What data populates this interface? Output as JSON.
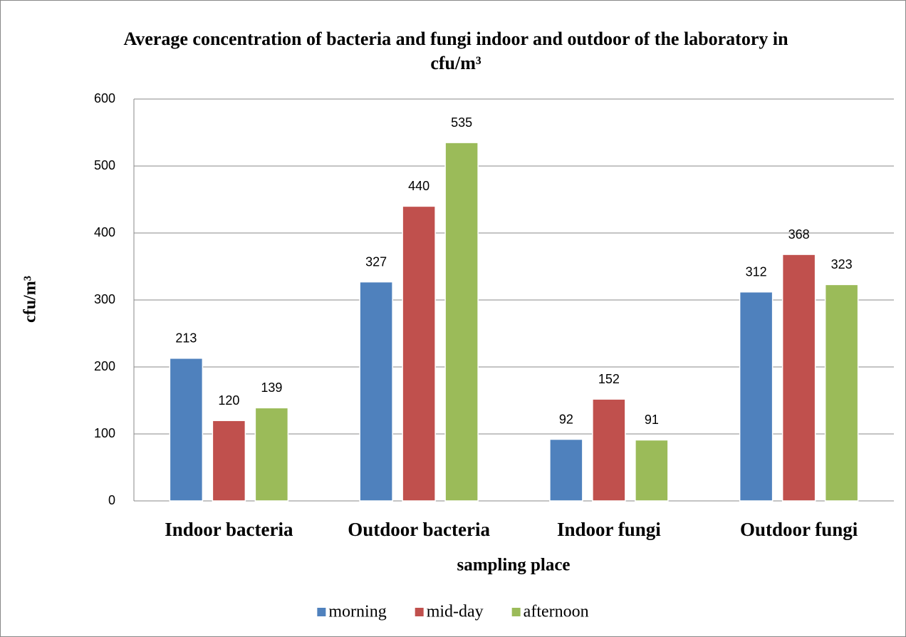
{
  "chart_data": {
    "type": "bar",
    "title": "Average concentration of bacteria and fungi indoor and outdoor of the laboratory in cfu/m³",
    "y_label": "cfu/m³",
    "x_label": "sampling place",
    "categories": [
      "Indoor bacteria",
      "Outdoor bacteria",
      "Indoor fungi",
      "Outdoor fungi"
    ],
    "series": [
      {
        "name": "morning",
        "color": "#4f81bd",
        "values": [
          213,
          327,
          92,
          312
        ]
      },
      {
        "name": "mid-day",
        "color": "#c0504d",
        "values": [
          120,
          440,
          152,
          368
        ]
      },
      {
        "name": "afternoon",
        "color": "#9bbb59",
        "values": [
          139,
          535,
          91,
          323
        ]
      }
    ],
    "ylim": [
      0,
      600
    ],
    "yticks": [
      0,
      100,
      200,
      300,
      400,
      500,
      600
    ],
    "grid": true,
    "legend": "bottom"
  }
}
